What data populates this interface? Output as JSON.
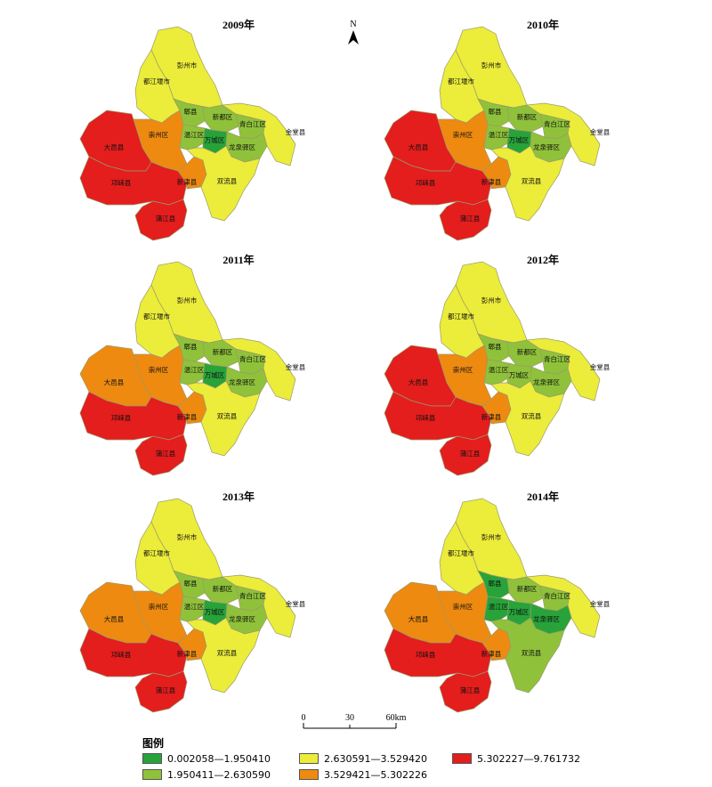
{
  "colors": {
    "c1": "#27a33a",
    "c2": "#8fc23a",
    "c3": "#ecec3a",
    "c4": "#ee8a10",
    "c5": "#e41d1d",
    "border": "#9a9a6a"
  },
  "north_label": "N",
  "scale_bar": {
    "ticks": [
      "0",
      "30",
      "60km"
    ]
  },
  "legend": {
    "title": "图例",
    "items": [
      {
        "label": "0.002058—1.950410",
        "color": "#27a33a"
      },
      {
        "label": "1.950411—2.630590",
        "color": "#8fc23a"
      },
      {
        "label": "2.630591—3.529420",
        "color": "#ecec3a"
      },
      {
        "label": "3.529421—5.302226",
        "color": "#ee8a10"
      },
      {
        "label": "5.302227—9.761732",
        "color": "#e41d1d"
      }
    ]
  },
  "maps": [
    {
      "title": "2009年",
      "regions": {
        "pengzhou": {
          "label": "彭州市",
          "cls": 3
        },
        "dujiangyan": {
          "label": "都江堰市",
          "cls": 3
        },
        "pixian": {
          "label": "郫县",
          "cls": 2
        },
        "xindu": {
          "label": "新都区",
          "cls": 2
        },
        "qingbaijiang": {
          "label": "青白江区",
          "cls": 2
        },
        "jintang": {
          "label": "金堂县",
          "cls": 3
        },
        "chongzhou": {
          "label": "崇州区",
          "cls": 4
        },
        "wenjiang": {
          "label": "温江区",
          "cls": 2
        },
        "wancheng": {
          "label": "万城区",
          "cls": 1
        },
        "longquanyi": {
          "label": "龙泉驿区",
          "cls": 2
        },
        "dayi": {
          "label": "大邑县",
          "cls": 5
        },
        "qionglai": {
          "label": "邛崃县",
          "cls": 5
        },
        "xinjin": {
          "label": "新津县",
          "cls": 4
        },
        "shuangliu": {
          "label": "双流县",
          "cls": 3
        },
        "pujiang": {
          "label": "蒲江县",
          "cls": 5
        }
      }
    },
    {
      "title": "2010年",
      "regions": {
        "pengzhou": {
          "label": "彭州市",
          "cls": 3
        },
        "dujiangyan": {
          "label": "都江堰市",
          "cls": 3
        },
        "pixian": {
          "label": "郫县",
          "cls": 2
        },
        "xindu": {
          "label": "新都区",
          "cls": 2
        },
        "qingbaijiang": {
          "label": "青白江区",
          "cls": 2
        },
        "jintang": {
          "label": "金堂县",
          "cls": 3
        },
        "chongzhou": {
          "label": "崇州区",
          "cls": 4
        },
        "wenjiang": {
          "label": "温江区",
          "cls": 2
        },
        "wancheng": {
          "label": "万城区",
          "cls": 1
        },
        "longquanyi": {
          "label": "龙泉驿区",
          "cls": 2
        },
        "dayi": {
          "label": "大邑县",
          "cls": 5
        },
        "qionglai": {
          "label": "邛崃县",
          "cls": 5
        },
        "xinjin": {
          "label": "新津县",
          "cls": 4
        },
        "shuangliu": {
          "label": "双流县",
          "cls": 3
        },
        "pujiang": {
          "label": "蒲江县",
          "cls": 5
        }
      }
    },
    {
      "title": "2011年",
      "regions": {
        "pengzhou": {
          "label": "彭州市",
          "cls": 3
        },
        "dujiangyan": {
          "label": "都江堰市",
          "cls": 3
        },
        "pixian": {
          "label": "郫县",
          "cls": 2
        },
        "xindu": {
          "label": "新都区",
          "cls": 2
        },
        "qingbaijiang": {
          "label": "青白江区",
          "cls": 2
        },
        "jintang": {
          "label": "金堂县",
          "cls": 3
        },
        "chongzhou": {
          "label": "崇州区",
          "cls": 4
        },
        "wenjiang": {
          "label": "温江区",
          "cls": 2
        },
        "wancheng": {
          "label": "万城区",
          "cls": 1
        },
        "longquanyi": {
          "label": "龙泉驿区",
          "cls": 2
        },
        "dayi": {
          "label": "大邑县",
          "cls": 4
        },
        "qionglai": {
          "label": "邛崃县",
          "cls": 5
        },
        "xinjin": {
          "label": "新津县",
          "cls": 4
        },
        "shuangliu": {
          "label": "双流县",
          "cls": 3
        },
        "pujiang": {
          "label": "蒲江县",
          "cls": 5
        }
      }
    },
    {
      "title": "2012年",
      "regions": {
        "pengzhou": {
          "label": "彭州市",
          "cls": 3
        },
        "dujiangyan": {
          "label": "都江堰市",
          "cls": 3
        },
        "pixian": {
          "label": "郫县",
          "cls": 2
        },
        "xindu": {
          "label": "新都区",
          "cls": 2
        },
        "qingbaijiang": {
          "label": "青白江区",
          "cls": 2
        },
        "jintang": {
          "label": "金堂县",
          "cls": 3
        },
        "chongzhou": {
          "label": "崇州区",
          "cls": 4
        },
        "wenjiang": {
          "label": "温江区",
          "cls": 2
        },
        "wancheng": {
          "label": "万城区",
          "cls": 2
        },
        "longquanyi": {
          "label": "龙泉驿区",
          "cls": 2
        },
        "dayi": {
          "label": "大邑县",
          "cls": 5
        },
        "qionglai": {
          "label": "邛崃县",
          "cls": 5
        },
        "xinjin": {
          "label": "新津县",
          "cls": 4
        },
        "shuangliu": {
          "label": "双流县",
          "cls": 3
        },
        "pujiang": {
          "label": "蒲江县",
          "cls": 5
        }
      }
    },
    {
      "title": "2013年",
      "regions": {
        "pengzhou": {
          "label": "彭州市",
          "cls": 3
        },
        "dujiangyan": {
          "label": "都江堰市",
          "cls": 3
        },
        "pixian": {
          "label": "郫县",
          "cls": 2
        },
        "xindu": {
          "label": "新都区",
          "cls": 2
        },
        "qingbaijiang": {
          "label": "青白江区",
          "cls": 2
        },
        "jintang": {
          "label": "金堂县",
          "cls": 3
        },
        "chongzhou": {
          "label": "崇州区",
          "cls": 4
        },
        "wenjiang": {
          "label": "温江区",
          "cls": 2
        },
        "wancheng": {
          "label": "万城区",
          "cls": 1
        },
        "longquanyi": {
          "label": "龙泉驿区",
          "cls": 2
        },
        "dayi": {
          "label": "大邑县",
          "cls": 4
        },
        "qionglai": {
          "label": "邛崃县",
          "cls": 5
        },
        "xinjin": {
          "label": "新津县",
          "cls": 4
        },
        "shuangliu": {
          "label": "双流县",
          "cls": 3
        },
        "pujiang": {
          "label": "蒲江县",
          "cls": 5
        }
      }
    },
    {
      "title": "2014年",
      "regions": {
        "pengzhou": {
          "label": "彭州市",
          "cls": 3
        },
        "dujiangyan": {
          "label": "都江堰市",
          "cls": 3
        },
        "pixian": {
          "label": "郫县",
          "cls": 1
        },
        "xindu": {
          "label": "新都区",
          "cls": 2
        },
        "qingbaijiang": {
          "label": "青白江区",
          "cls": 2
        },
        "jintang": {
          "label": "金堂县",
          "cls": 3
        },
        "chongzhou": {
          "label": "崇州区",
          "cls": 4
        },
        "wenjiang": {
          "label": "温江区",
          "cls": 1
        },
        "wancheng": {
          "label": "万城区",
          "cls": 1
        },
        "longquanyi": {
          "label": "龙泉驿区",
          "cls": 1
        },
        "dayi": {
          "label": "大邑县",
          "cls": 4
        },
        "qionglai": {
          "label": "邛崃县",
          "cls": 5
        },
        "xinjin": {
          "label": "新津县",
          "cls": 4
        },
        "shuangliu": {
          "label": "双流县",
          "cls": 2
        },
        "pujiang": {
          "label": "蒲江县",
          "cls": 5
        }
      }
    }
  ]
}
